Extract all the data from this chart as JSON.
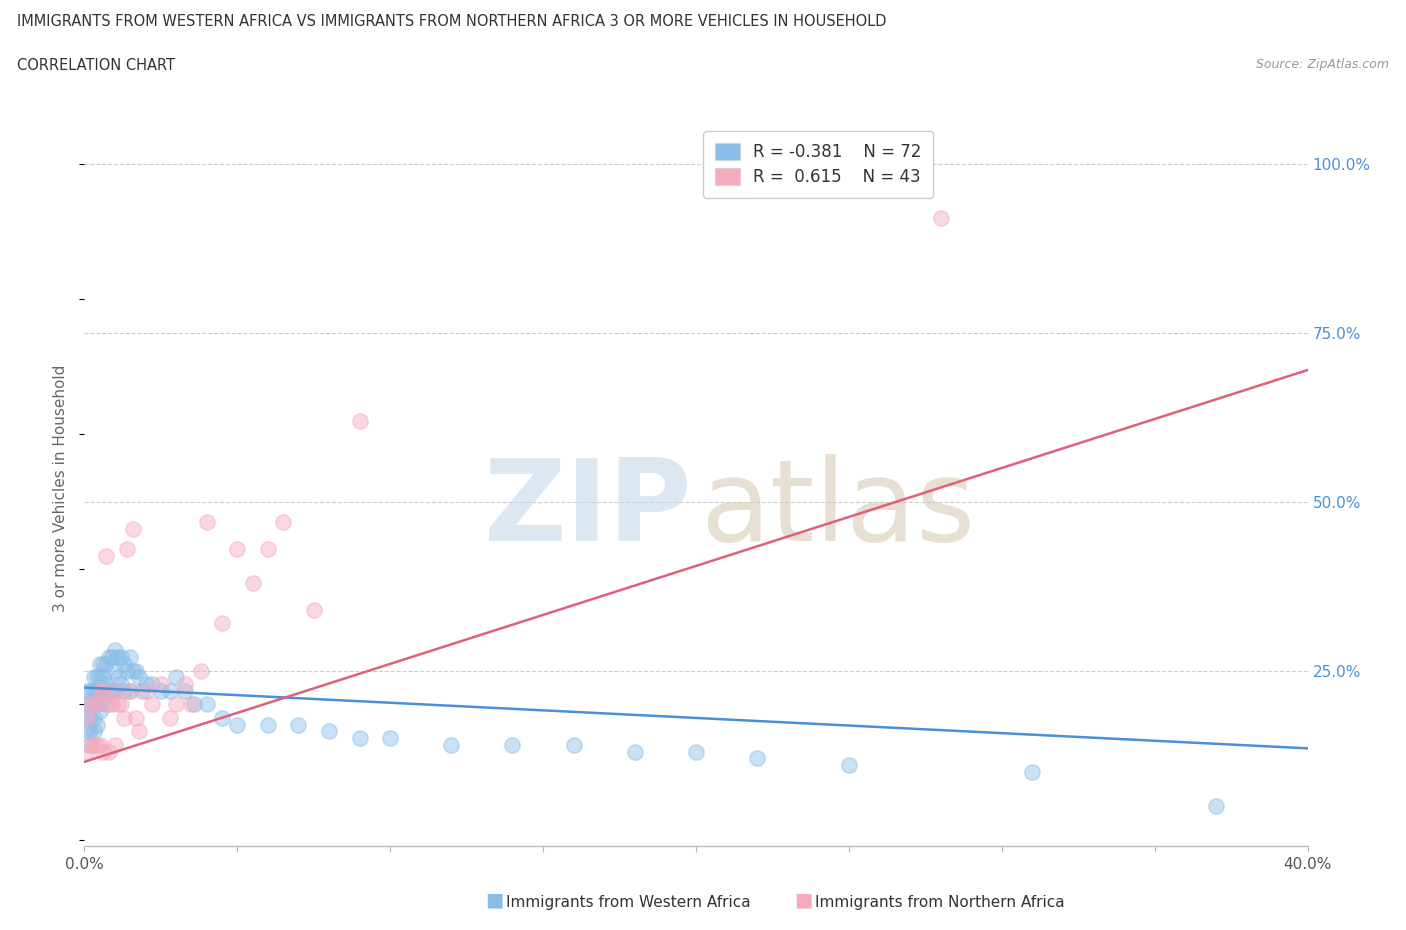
{
  "title_line1": "IMMIGRANTS FROM WESTERN AFRICA VS IMMIGRANTS FROM NORTHERN AFRICA 3 OR MORE VEHICLES IN HOUSEHOLD",
  "title_line2": "CORRELATION CHART",
  "source": "Source: ZipAtlas.com",
  "ylabel": "3 or more Vehicles in Household",
  "xlim": [
    0.0,
    0.4
  ],
  "ylim": [
    -0.01,
    1.05
  ],
  "xticks": [
    0.0,
    0.05,
    0.1,
    0.15,
    0.2,
    0.25,
    0.3,
    0.35,
    0.4
  ],
  "xticklabels": [
    "0.0%",
    "",
    "",
    "",
    "",
    "",
    "",
    "",
    "40.0%"
  ],
  "yticks_right": [
    0.0,
    0.25,
    0.5,
    0.75,
    1.0
  ],
  "yticklabels_right": [
    "",
    "25.0%",
    "50.0%",
    "75.0%",
    "100.0%"
  ],
  "blue_color": "#89bde8",
  "blue_line_color": "#4a90d9",
  "pink_color": "#f5aabf",
  "pink_line_color": "#e0607a",
  "legend_label1": "R = -0.381    N = 72",
  "legend_label2": "R =  0.615    N = 43",
  "series1_label": "Immigrants from Western Africa",
  "series2_label": "Immigrants from Northern Africa",
  "blue_scatter_x": [
    0.001,
    0.001,
    0.001,
    0.001,
    0.002,
    0.002,
    0.002,
    0.002,
    0.002,
    0.003,
    0.003,
    0.003,
    0.003,
    0.003,
    0.004,
    0.004,
    0.004,
    0.004,
    0.005,
    0.005,
    0.005,
    0.005,
    0.006,
    0.006,
    0.006,
    0.007,
    0.007,
    0.007,
    0.008,
    0.008,
    0.009,
    0.009,
    0.01,
    0.01,
    0.01,
    0.011,
    0.011,
    0.012,
    0.012,
    0.013,
    0.013,
    0.014,
    0.015,
    0.015,
    0.016,
    0.017,
    0.018,
    0.019,
    0.02,
    0.022,
    0.025,
    0.028,
    0.03,
    0.033,
    0.036,
    0.04,
    0.045,
    0.05,
    0.06,
    0.07,
    0.08,
    0.09,
    0.1,
    0.12,
    0.14,
    0.16,
    0.18,
    0.2,
    0.22,
    0.25,
    0.31,
    0.37
  ],
  "blue_scatter_y": [
    0.22,
    0.2,
    0.18,
    0.16,
    0.22,
    0.2,
    0.18,
    0.16,
    0.14,
    0.24,
    0.22,
    0.2,
    0.18,
    0.16,
    0.24,
    0.22,
    0.2,
    0.17,
    0.26,
    0.24,
    0.22,
    0.19,
    0.26,
    0.24,
    0.21,
    0.26,
    0.23,
    0.2,
    0.27,
    0.22,
    0.27,
    0.22,
    0.28,
    0.25,
    0.22,
    0.27,
    0.24,
    0.27,
    0.23,
    0.26,
    0.22,
    0.25,
    0.27,
    0.22,
    0.25,
    0.25,
    0.24,
    0.22,
    0.23,
    0.23,
    0.22,
    0.22,
    0.24,
    0.22,
    0.2,
    0.2,
    0.18,
    0.17,
    0.17,
    0.17,
    0.16,
    0.15,
    0.15,
    0.14,
    0.14,
    0.14,
    0.13,
    0.13,
    0.12,
    0.11,
    0.1,
    0.05
  ],
  "pink_scatter_x": [
    0.001,
    0.001,
    0.002,
    0.002,
    0.003,
    0.003,
    0.004,
    0.004,
    0.005,
    0.005,
    0.006,
    0.006,
    0.007,
    0.008,
    0.008,
    0.009,
    0.01,
    0.01,
    0.011,
    0.012,
    0.013,
    0.014,
    0.015,
    0.016,
    0.017,
    0.018,
    0.02,
    0.022,
    0.025,
    0.028,
    0.03,
    0.033,
    0.035,
    0.038,
    0.04,
    0.045,
    0.05,
    0.055,
    0.06,
    0.065,
    0.075,
    0.09,
    0.28
  ],
  "pink_scatter_y": [
    0.18,
    0.13,
    0.2,
    0.14,
    0.2,
    0.14,
    0.2,
    0.14,
    0.22,
    0.14,
    0.22,
    0.13,
    0.42,
    0.2,
    0.13,
    0.2,
    0.22,
    0.14,
    0.2,
    0.2,
    0.18,
    0.43,
    0.22,
    0.46,
    0.18,
    0.16,
    0.22,
    0.2,
    0.23,
    0.18,
    0.2,
    0.23,
    0.2,
    0.25,
    0.47,
    0.32,
    0.43,
    0.38,
    0.43,
    0.47,
    0.34,
    0.62,
    0.92
  ],
  "blue_trend_x": [
    0.0,
    0.4
  ],
  "blue_trend_y": [
    0.225,
    0.135
  ],
  "pink_trend_x": [
    0.0,
    0.4
  ],
  "pink_trend_y": [
    0.115,
    0.695
  ],
  "grid_yticks": [
    0.25,
    0.5,
    0.75,
    1.0
  ],
  "bg_color": "#ffffff",
  "grid_color": "#cccccc",
  "right_label_color": "#4a90d9",
  "title_color": "#333333",
  "watermark_zip_color": "#c5d8ea",
  "watermark_atlas_color": "#d8cbb5"
}
